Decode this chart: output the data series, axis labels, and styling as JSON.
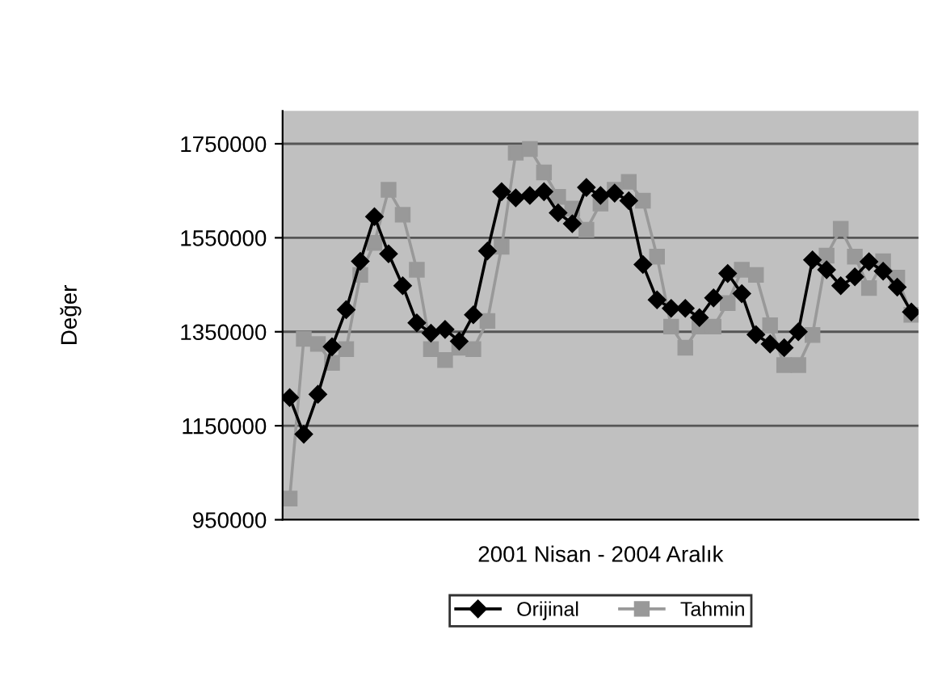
{
  "chart_data": {
    "type": "line",
    "xlabel": "2001 Nisan - 2004 Aralık",
    "ylabel": "Değer",
    "categories": [
      null,
      null,
      null,
      null,
      null,
      null,
      null,
      null,
      null,
      null,
      null,
      null,
      null,
      null,
      null,
      null,
      null,
      null,
      null,
      null,
      null,
      null,
      null,
      null,
      null,
      null,
      null,
      null,
      null,
      null,
      null,
      null,
      null,
      null,
      null,
      null,
      null,
      null,
      null,
      null,
      null,
      null,
      null,
      null,
      null
    ],
    "series": [
      {
        "name": "Orijinal",
        "color": "#000000",
        "marker": "diamond",
        "values": [
          1210000,
          1132000,
          1217000,
          1318000,
          1397000,
          1500000,
          1595000,
          1516000,
          1448000,
          1369000,
          1347000,
          1355000,
          1330000,
          1386000,
          1522000,
          1648000,
          1635000,
          1640000,
          1648000,
          1603000,
          1580000,
          1657000,
          1640000,
          1645000,
          1629000,
          1493000,
          1418000,
          1400000,
          1400000,
          1380000,
          1422000,
          1474000,
          1431000,
          1344000,
          1324000,
          1316000,
          1350000,
          1503000,
          1482000,
          1448000,
          1467000,
          1499000,
          1479000,
          1445000,
          1392000
        ]
      },
      {
        "name": "Tahmin",
        "color": "#999999",
        "marker": "square",
        "values": [
          995000,
          1335000,
          1324000,
          1284000,
          1313000,
          1471000,
          1539000,
          1652000,
          1599000,
          1482000,
          1313000,
          1290000,
          1316000,
          1313000,
          1373000,
          1531000,
          1731000,
          1739000,
          1689000,
          1637000,
          1612000,
          1567000,
          1623000,
          1652000,
          1669000,
          1629000,
          1510000,
          1361000,
          1316000,
          1361000,
          1361000,
          1411000,
          1482000,
          1471000,
          1364000,
          1279000,
          1279000,
          1343000,
          1512000,
          1569000,
          1510000,
          1443000,
          1500000,
          1465000,
          1386000
        ]
      }
    ],
    "ylim": [
      950000,
      1820000
    ],
    "yticks": [
      950000,
      1150000,
      1350000,
      1550000,
      1750000
    ],
    "grid": "y",
    "legend": "bottom",
    "line_style": "solid"
  }
}
